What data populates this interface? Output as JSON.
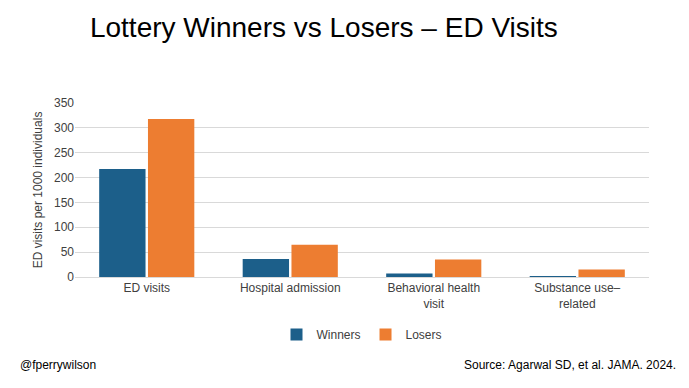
{
  "chart_data": {
    "type": "bar",
    "title": "Lottery Winners vs Losers – ED Visits",
    "y_label": "ED visits per 1000 individuals",
    "categories": [
      "ED visits",
      "Hospital admission",
      "Behavioral health visit",
      "Substance use–related"
    ],
    "series": [
      {
        "name": "Winners",
        "color": "#1c5f8a",
        "values": [
          217,
          36,
          7,
          2
        ]
      },
      {
        "name": "Losers",
        "color": "#ed7d31",
        "values": [
          318,
          65,
          35,
          15
        ]
      }
    ],
    "ylim": [
      0,
      350
    ],
    "yticks": [
      0,
      50,
      100,
      150,
      200,
      250,
      300,
      350
    ],
    "grid": true,
    "legend": "bottom",
    "annotations": [
      "@fperrywilson",
      "Source: Agarwal SD, et al. JAMA. 2024."
    ]
  }
}
